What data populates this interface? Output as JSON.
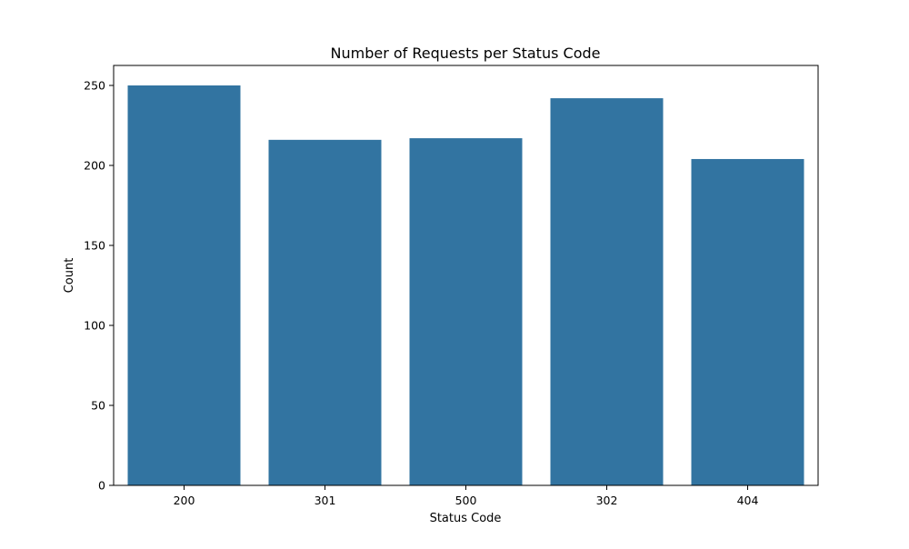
{
  "chart_data": {
    "type": "bar",
    "title": "Number of Requests per Status Code",
    "xlabel": "Status Code",
    "ylabel": "Count",
    "categories": [
      "200",
      "301",
      "500",
      "302",
      "404"
    ],
    "values": [
      250,
      216,
      217,
      242,
      204
    ],
    "ylim": [
      0,
      262.5
    ],
    "yticks": [
      0,
      50,
      100,
      150,
      200,
      250
    ],
    "bar_color": "#3274a1",
    "grid": false,
    "legend": "none"
  }
}
